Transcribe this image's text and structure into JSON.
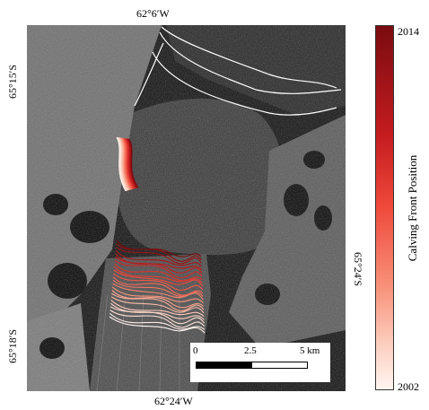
{
  "labels": {
    "top_lon": "62°6′W",
    "bottom_lon": "62°24′W",
    "left_lat_top": "65°15′S",
    "left_lat_bottom": "65°18′S",
    "right_lat": "65°24′S"
  },
  "colorbar": {
    "title": "Calving Front Position",
    "max_label": "2014",
    "min_label": "2002",
    "colors": [
      "#7a0c10",
      "#c41c1f",
      "#ef4a3b",
      "#f8927a",
      "#fcd0c0",
      "#fff5f0"
    ]
  },
  "scalebar": {
    "label_0": "0",
    "label_mid": "2.5",
    "label_end": "5 km"
  },
  "map": {
    "background": "#0b0b0b",
    "front_series_count": 24
  }
}
